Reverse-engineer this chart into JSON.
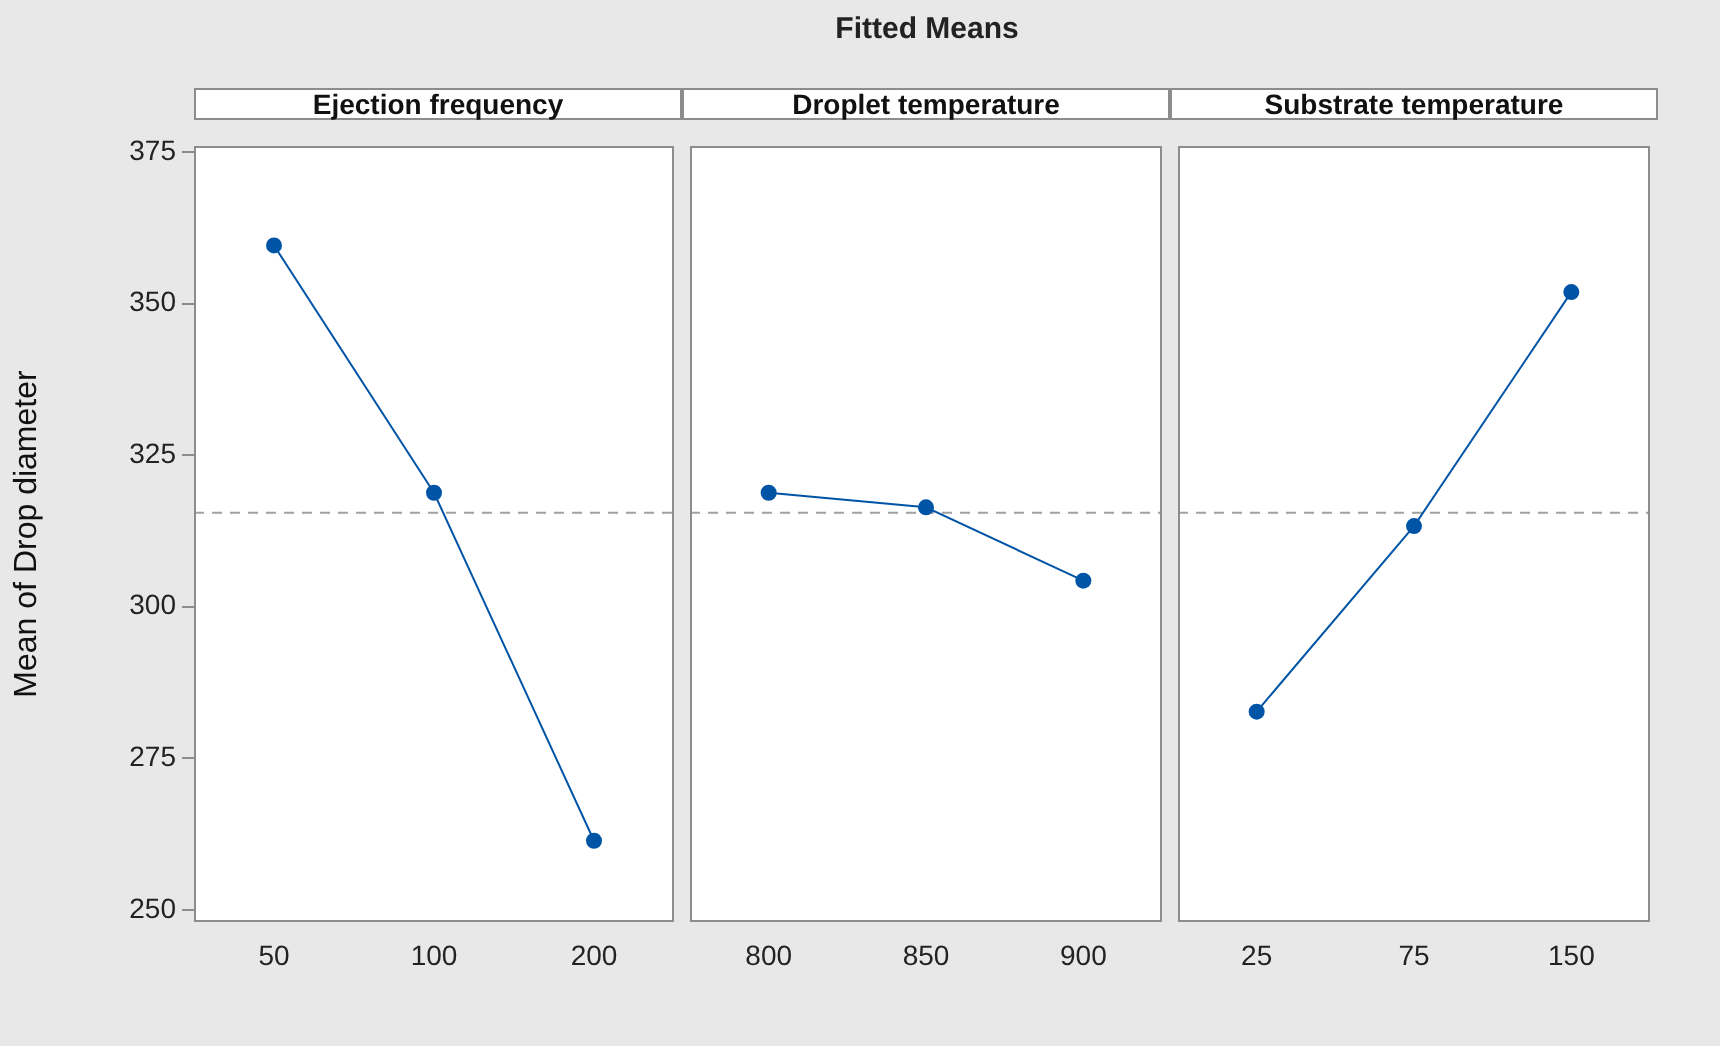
{
  "chart_data": [
    {
      "type": "line",
      "subtitle": "Ejection frequency",
      "ylabel": "Mean of Drop diameter",
      "categories": [
        "50",
        "100",
        "200"
      ],
      "values": [
        359.6,
        318.8,
        261.4
      ],
      "color": "#0054a6",
      "marker": "circle",
      "ylim": [
        248,
        376
      ],
      "yticks": [
        250,
        275,
        300,
        325,
        350,
        375
      ],
      "ref_lines": [
        {
          "axis": "y",
          "value": 315.5,
          "color": "#a0a0a0",
          "line_style": "dashed"
        }
      ]
    },
    {
      "type": "line",
      "title": "Fitted Means",
      "subtitle": "Droplet temperature",
      "categories": [
        "800",
        "850",
        "900"
      ],
      "values": [
        318.8,
        316.4,
        304.3
      ],
      "color": "#0054a6",
      "marker": "circle",
      "ylim": [
        248,
        376
      ],
      "yticks": [
        250,
        275,
        300,
        325,
        350,
        375
      ],
      "tick_labels": "x",
      "ref_lines": [
        {
          "axis": "y",
          "value": 315.5,
          "color": "#a0a0a0",
          "line_style": "dashed"
        }
      ]
    },
    {
      "type": "line",
      "subtitle": "Substrate temperature",
      "categories": [
        "25",
        "75",
        "150"
      ],
      "values": [
        282.7,
        313.3,
        351.9
      ],
      "color": "#0054a6",
      "marker": "circle",
      "ylim": [
        248,
        376
      ],
      "yticks": [
        250,
        275,
        300,
        325,
        350,
        375
      ],
      "tick_labels": "x",
      "ref_lines": [
        {
          "axis": "y",
          "value": 315.5,
          "color": "#a0a0a0",
          "line_style": "dashed"
        }
      ]
    }
  ]
}
